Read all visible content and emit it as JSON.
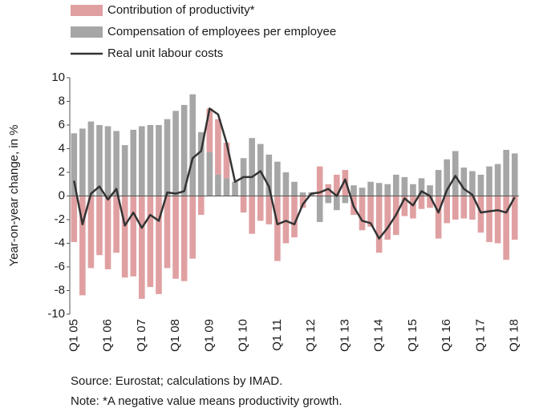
{
  "chart_data": {
    "type": "bar",
    "y_axis_label": "Year-on-year change, in %",
    "notes": [
      "Source: Eurostat; calculations by IMAD.",
      "Note: *A negative value means productivity growth."
    ],
    "categories": [
      "Q1 05",
      null,
      null,
      null,
      "Q1 06",
      null,
      null,
      null,
      "Q1 07",
      null,
      null,
      null,
      "Q1 08",
      null,
      null,
      null,
      "Q1 09",
      null,
      null,
      null,
      "Q1 10",
      null,
      null,
      null,
      "Q1 11",
      null,
      null,
      null,
      "Q1 12",
      null,
      null,
      null,
      "Q1 13",
      null,
      null,
      null,
      "Q1 14",
      null,
      null,
      null,
      "Q1 15",
      null,
      null,
      null,
      "Q1 16",
      null,
      null,
      null,
      "Q1 17",
      null,
      null,
      null,
      "Q1 18"
    ],
    "series": [
      {
        "name": "Contribution of productivity*",
        "color": "#e0a0a2",
        "type": "bar",
        "values": [
          -3.9,
          -8.4,
          -6.1,
          -5.0,
          -6.2,
          -4.8,
          -6.9,
          -6.8,
          -8.7,
          -7.7,
          -8.3,
          -6.1,
          -7.0,
          -7.2,
          -5.3,
          -1.6,
          3.7,
          4.7,
          3.0,
          0.0,
          -1.4,
          -3.2,
          -2.1,
          -2.4,
          -5.5,
          -4.0,
          -3.5,
          -1.0,
          0.0,
          2.5,
          1.0,
          1.8,
          2.2,
          -1.6,
          -2.9,
          -2.6,
          -4.8,
          -3.7,
          -3.3,
          -1.7,
          -1.9,
          -1.1,
          -1.0,
          -3.6,
          -2.3,
          -2.0,
          -1.9,
          -2.0,
          -3.1,
          -3.9,
          -4.0,
          -5.4,
          -3.7
        ]
      },
      {
        "name": "Compensation of employees per employee",
        "color": "#a6a6a6",
        "type": "bar",
        "values": [
          5.3,
          5.7,
          6.3,
          6.0,
          5.9,
          5.5,
          4.3,
          5.6,
          5.9,
          6.0,
          6.0,
          6.5,
          7.2,
          7.7,
          8.6,
          5.4,
          3.7,
          1.8,
          1.5,
          1.2,
          3.2,
          4.9,
          4.4,
          3.5,
          2.9,
          2.0,
          1.2,
          0.3,
          0.3,
          -2.2,
          -0.6,
          -1.2,
          -0.6,
          0.9,
          0.7,
          1.2,
          1.1,
          1.0,
          1.8,
          1.6,
          1.0,
          1.5,
          0.9,
          2.2,
          3.1,
          3.8,
          2.4,
          2.1,
          1.8,
          2.5,
          2.7,
          3.9,
          3.6
        ]
      },
      {
        "name": "Real unit labour costs",
        "color": "#333333",
        "type": "line",
        "values": [
          1.3,
          -2.4,
          0.2,
          0.8,
          -0.3,
          0.6,
          -2.5,
          -1.4,
          -2.7,
          -1.6,
          -2.1,
          0.3,
          0.2,
          0.4,
          3.2,
          3.8,
          7.4,
          6.9,
          4.5,
          1.2,
          1.6,
          1.6,
          2.1,
          0.8,
          -2.4,
          -2.1,
          -2.4,
          -0.7,
          0.2,
          0.3,
          0.6,
          0.0,
          1.4,
          -0.9,
          -2.1,
          -2.3,
          -3.6,
          -2.7,
          -1.6,
          -0.2,
          -0.8,
          0.4,
          0.0,
          -1.4,
          0.5,
          1.7,
          0.6,
          0.1,
          -1.4,
          -1.3,
          -1.2,
          -1.4,
          -0.1
        ]
      }
    ],
    "ylim": [
      -10,
      10
    ],
    "yticks": [
      10,
      8,
      6,
      4,
      2,
      0,
      -2,
      -4,
      -6,
      -8,
      -10
    ],
    "grid": false
  }
}
